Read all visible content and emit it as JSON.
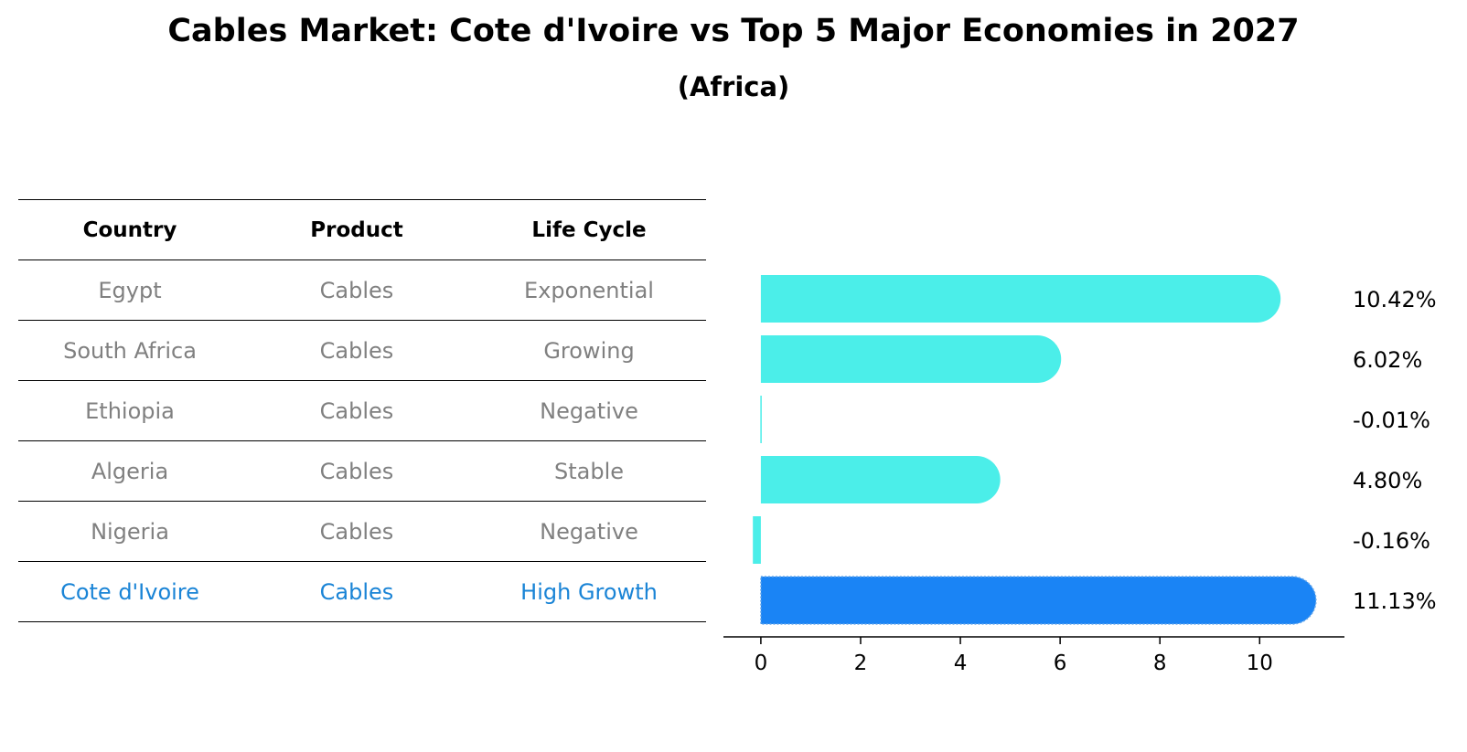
{
  "chart_data": {
    "type": "bar",
    "orientation": "horizontal",
    "title": "Cables Market: Cote d'Ivoire vs Top 5 Major Economies in 2027",
    "subtitle": "(Africa)",
    "categories": [
      "Egypt",
      "South Africa",
      "Ethiopia",
      "Algeria",
      "Nigeria",
      "Cote d'Ivoire"
    ],
    "values": [
      10.42,
      6.02,
      -0.01,
      4.8,
      -0.16,
      11.13
    ],
    "value_labels": [
      "10.42%",
      "6.02%",
      "-0.01%",
      "4.80%",
      "-0.16%",
      "11.13%"
    ],
    "highlight_index": 5,
    "xlim": [
      -0.75,
      11.7
    ],
    "xticks": [
      0,
      2,
      4,
      6,
      8,
      10
    ],
    "xlabel": "",
    "ylabel": "",
    "colors": {
      "bar": "#4beee9",
      "highlight": "#1a84f5"
    }
  },
  "table": {
    "headers": [
      "Country",
      "Product",
      "Life Cycle"
    ],
    "rows": [
      [
        "Egypt",
        "Cables",
        "Exponential"
      ],
      [
        "South Africa",
        "Cables",
        "Growing"
      ],
      [
        "Ethiopia",
        "Cables",
        "Negative"
      ],
      [
        "Algeria",
        "Cables",
        "Stable"
      ],
      [
        "Nigeria",
        "Cables",
        "Negative"
      ],
      [
        "Cote d'Ivoire",
        "Cables",
        "High Growth"
      ]
    ]
  }
}
